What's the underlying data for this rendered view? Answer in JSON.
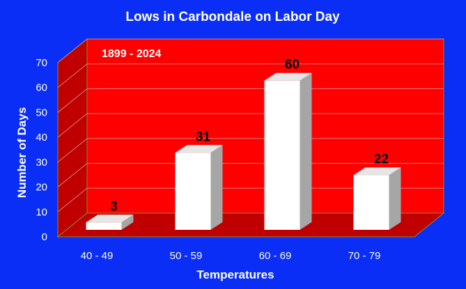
{
  "chart_data": {
    "type": "bar",
    "title": "Lows in Carbondale on Labor Day",
    "annotation": "1899 - 2024",
    "xlabel": "Temperatures",
    "ylabel": "Number of Days",
    "categories": [
      "40 - 49",
      "50 - 59",
      "60 - 69",
      "70 - 79"
    ],
    "values": [
      3,
      31,
      60,
      22
    ],
    "ylim": [
      0,
      70
    ],
    "yticks": [
      0,
      10,
      20,
      30,
      40,
      50,
      60,
      70
    ],
    "grid": true,
    "legend": "none",
    "colors": {
      "background": "#0a2ef5",
      "plot_back_wall": "#ff0000",
      "plot_side_wall": "#c00000",
      "plot_floor": "#c00000",
      "gridline": "#d08080",
      "bar_front": "#ffffff",
      "bar_top": "#e6e6e6",
      "bar_side": "#a6a6a6"
    }
  }
}
